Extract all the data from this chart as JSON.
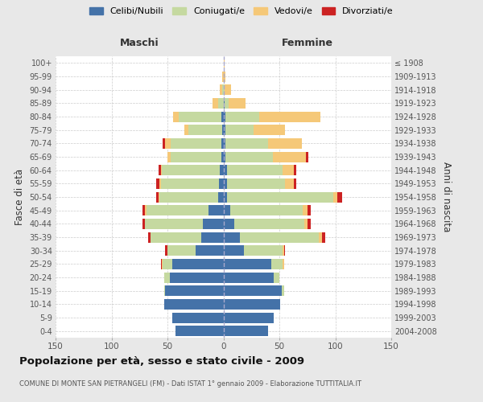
{
  "age_groups": [
    "0-4",
    "5-9",
    "10-14",
    "15-19",
    "20-24",
    "25-29",
    "30-34",
    "35-39",
    "40-44",
    "45-49",
    "50-54",
    "55-59",
    "60-64",
    "65-69",
    "70-74",
    "75-79",
    "80-84",
    "85-89",
    "90-94",
    "95-99",
    "100+"
  ],
  "birth_years": [
    "2004-2008",
    "1999-2003",
    "1994-1998",
    "1989-1993",
    "1984-1988",
    "1979-1983",
    "1974-1978",
    "1969-1973",
    "1964-1968",
    "1959-1963",
    "1954-1958",
    "1949-1953",
    "1944-1948",
    "1939-1943",
    "1934-1938",
    "1929-1933",
    "1924-1928",
    "1919-1923",
    "1914-1918",
    "1909-1913",
    "≤ 1908"
  ],
  "maschi": {
    "celibi": [
      43,
      46,
      53,
      52,
      48,
      46,
      25,
      20,
      18,
      13,
      5,
      4,
      3,
      2,
      2,
      1,
      2,
      0,
      0,
      0,
      0
    ],
    "coniugati": [
      0,
      0,
      0,
      1,
      5,
      8,
      25,
      45,
      52,
      56,
      52,
      52,
      52,
      45,
      45,
      30,
      38,
      5,
      1,
      0,
      0
    ],
    "vedovi": [
      0,
      0,
      0,
      0,
      0,
      1,
      0,
      0,
      0,
      1,
      1,
      1,
      1,
      3,
      5,
      4,
      5,
      5,
      2,
      1,
      0
    ],
    "divorziati": [
      0,
      0,
      0,
      0,
      0,
      1,
      2,
      2,
      2,
      2,
      2,
      3,
      2,
      0,
      2,
      0,
      0,
      0,
      0,
      0,
      0
    ]
  },
  "femmine": {
    "nubili": [
      40,
      45,
      51,
      52,
      45,
      43,
      18,
      15,
      10,
      6,
      3,
      3,
      3,
      2,
      2,
      2,
      2,
      1,
      0,
      0,
      0
    ],
    "coniugate": [
      0,
      0,
      0,
      2,
      5,
      10,
      35,
      70,
      62,
      65,
      95,
      52,
      50,
      42,
      38,
      25,
      30,
      4,
      1,
      0,
      0
    ],
    "vedove": [
      0,
      0,
      0,
      0,
      0,
      1,
      1,
      3,
      3,
      4,
      4,
      8,
      10,
      30,
      30,
      28,
      55,
      15,
      6,
      2,
      1
    ],
    "divorziate": [
      0,
      0,
      0,
      0,
      0,
      0,
      1,
      3,
      3,
      3,
      4,
      2,
      2,
      2,
      0,
      0,
      0,
      0,
      0,
      0,
      0
    ]
  },
  "colors": {
    "celibi": "#4472a8",
    "coniugati": "#c5d9a0",
    "vedovi": "#f5c878",
    "divorziati": "#cc2222"
  },
  "xlim": 150,
  "title": "Popolazione per età, sesso e stato civile - 2009",
  "subtitle": "COMUNE DI MONTE SAN PIETRANGELI (FM) - Dati ISTAT 1° gennaio 2009 - Elaborazione TUTTITALIA.IT",
  "ylabel_left": "Fasce di età",
  "ylabel_right": "Anni di nascita",
  "xlabel_maschi": "Maschi",
  "xlabel_femmine": "Femmine",
  "bg_color": "#e8e8e8",
  "plot_bg": "#ffffff"
}
